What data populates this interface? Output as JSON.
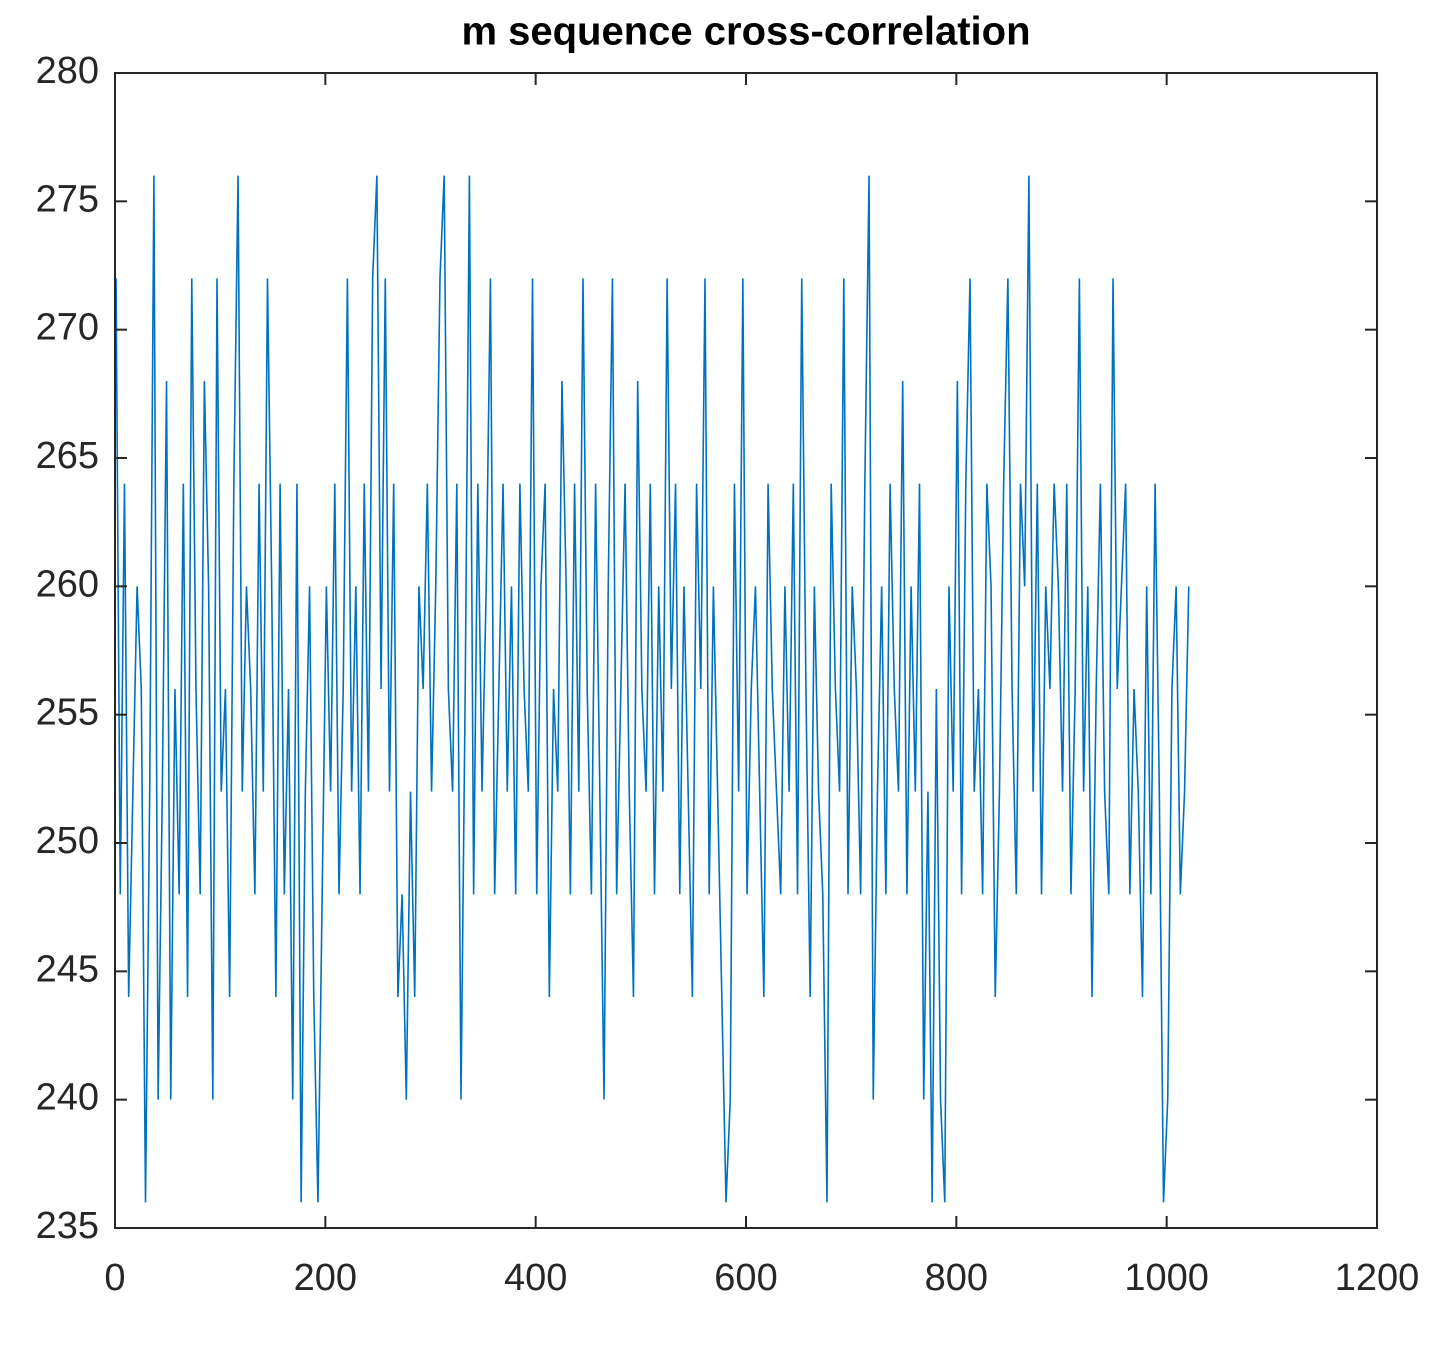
{
  "chart_data": {
    "type": "line",
    "title": "m sequence cross-correlation",
    "x": [
      1,
      5,
      9,
      13,
      17,
      21,
      25,
      29,
      33,
      37,
      41,
      45,
      49,
      53,
      57,
      61,
      65,
      69,
      73,
      77,
      81,
      85,
      89,
      93,
      97,
      101,
      105,
      109,
      113,
      117,
      121,
      125,
      129,
      133,
      137,
      141,
      145,
      149,
      153,
      157,
      161,
      165,
      169,
      173,
      177,
      181,
      185,
      189,
      193,
      197,
      201,
      205,
      209,
      213,
      217,
      221,
      225,
      229,
      233,
      237,
      241,
      245,
      249,
      253,
      257,
      261,
      265,
      269,
      273,
      277,
      281,
      285,
      289,
      293,
      297,
      301,
      305,
      309,
      313,
      317,
      321,
      325,
      329,
      333,
      337,
      341,
      345,
      349,
      353,
      357,
      361,
      365,
      369,
      373,
      377,
      381,
      385,
      389,
      393,
      397,
      401,
      405,
      409,
      413,
      417,
      421,
      425,
      429,
      433,
      437,
      441,
      445,
      449,
      453,
      457,
      461,
      465,
      469,
      473,
      477,
      481,
      485,
      489,
      493,
      497,
      501,
      505,
      509,
      513,
      517,
      521,
      525,
      529,
      533,
      537,
      541,
      545,
      549,
      553,
      557,
      561,
      565,
      569,
      573,
      577,
      581,
      585,
      589,
      593,
      597,
      601,
      605,
      609,
      613,
      617,
      621,
      625,
      629,
      633,
      637,
      641,
      645,
      649,
      653,
      657,
      661,
      665,
      669,
      673,
      677,
      681,
      685,
      689,
      693,
      697,
      701,
      705,
      709,
      713,
      717,
      721,
      725,
      729,
      733,
      737,
      741,
      745,
      749,
      753,
      757,
      761,
      765,
      769,
      773,
      777,
      781,
      785,
      789,
      793,
      797,
      801,
      805,
      809,
      813,
      817,
      821,
      825,
      829,
      833,
      837,
      841,
      845,
      849,
      853,
      857,
      861,
      865,
      869,
      873,
      877,
      881,
      885,
      889,
      893,
      897,
      901,
      905,
      909,
      913,
      917,
      921,
      925,
      929,
      933,
      937,
      941,
      945,
      949,
      953,
      957,
      961,
      965,
      969,
      973,
      977,
      981,
      985,
      989,
      993,
      997,
      1001,
      1005,
      1009,
      1013,
      1017,
      1021
    ],
    "values": [
      272,
      248,
      264,
      244,
      252,
      260,
      256,
      236,
      252,
      276,
      240,
      252,
      268,
      240,
      256,
      248,
      264,
      244,
      272,
      256,
      248,
      268,
      260,
      240,
      272,
      252,
      256,
      244,
      264,
      276,
      252,
      260,
      256,
      248,
      264,
      252,
      272,
      260,
      244,
      264,
      248,
      256,
      240,
      264,
      236,
      252,
      260,
      244,
      236,
      248,
      260,
      252,
      264,
      248,
      256,
      272,
      252,
      260,
      248,
      264,
      252,
      272,
      276,
      256,
      272,
      252,
      264,
      244,
      248,
      240,
      252,
      244,
      260,
      256,
      264,
      252,
      260,
      272,
      276,
      256,
      252,
      264,
      240,
      256,
      276,
      248,
      264,
      252,
      260,
      272,
      248,
      256,
      264,
      252,
      260,
      248,
      264,
      256,
      252,
      272,
      248,
      260,
      264,
      244,
      256,
      252,
      268,
      260,
      248,
      264,
      252,
      272,
      256,
      248,
      264,
      252,
      240,
      260,
      272,
      248,
      256,
      264,
      252,
      244,
      268,
      256,
      252,
      264,
      248,
      260,
      252,
      272,
      256,
      264,
      248,
      260,
      252,
      244,
      264,
      256,
      272,
      248,
      260,
      252,
      244,
      236,
      240,
      264,
      252,
      272,
      248,
      256,
      260,
      252,
      244,
      264,
      256,
      252,
      248,
      260,
      252,
      264,
      248,
      272,
      256,
      244,
      260,
      252,
      248,
      236,
      264,
      256,
      252,
      272,
      248,
      260,
      256,
      248,
      264,
      276,
      240,
      252,
      260,
      248,
      264,
      256,
      252,
      268,
      248,
      260,
      252,
      264,
      240,
      252,
      236,
      256,
      240,
      236,
      260,
      252,
      268,
      248,
      264,
      272,
      252,
      256,
      248,
      264,
      260,
      244,
      252,
      264,
      272,
      256,
      248,
      264,
      260,
      276,
      252,
      264,
      248,
      260,
      256,
      264,
      260,
      252,
      264,
      248,
      256,
      272,
      252,
      260,
      244,
      256,
      264,
      252,
      248,
      272,
      256,
      260,
      264,
      248,
      256,
      252,
      244,
      260,
      248,
      264,
      252,
      236,
      240,
      256,
      260,
      248,
      252,
      260
    ],
    "color": "#0072BD",
    "xlim": [
      0,
      1200
    ],
    "xticks": [
      0,
      200,
      400,
      600,
      800,
      1000,
      1200
    ],
    "ylim": [
      235,
      280
    ],
    "yticks": [
      235,
      240,
      245,
      250,
      255,
      260,
      265,
      270,
      275,
      280
    ],
    "grid": false
  }
}
